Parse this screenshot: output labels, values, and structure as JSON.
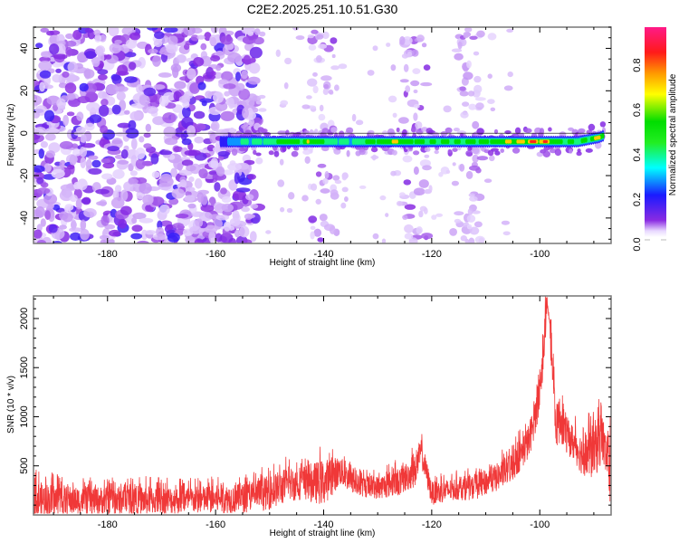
{
  "figure": {
    "title": "C2E2.2025.251.10.51.G30"
  },
  "chart_data": [
    {
      "type": "heatmap",
      "name": "spectrogram",
      "title": "C2E2.2025.251.10.51.G30",
      "xlabel": "Height of straight line (km)",
      "ylabel": "Frequency (Hz)",
      "xlim": [
        -193.7,
        -86.8
      ],
      "ylim": [
        -52,
        50
      ],
      "xticks": [
        -180,
        -160,
        -140,
        -120,
        -100
      ],
      "xtick_labels": [
        "-180",
        "-160",
        "-140",
        "-120",
        "-100"
      ],
      "yticks": [
        -40,
        -20,
        0,
        20,
        40
      ],
      "ytick_labels": [
        "-40",
        "-20",
        "0",
        "20",
        "40"
      ],
      "colorbar": {
        "label": "Normalized spectral amplitude",
        "range": [
          0.0,
          0.97
        ],
        "ticks": [
          0.0,
          0.2,
          0.4,
          0.6,
          0.8
        ],
        "tick_labels": [
          "0.0",
          "0.2",
          "0.4",
          "0.6",
          "0.8"
        ],
        "colormap": "rainbow (white-violet-blue-cyan-green-yellow-red-magenta)"
      },
      "features": {
        "noise_region_x": [
          -193.7,
          -155
        ],
        "signal_line_frequency_hz": -4,
        "signal_line_x": [
          -159,
          -88
        ],
        "signal_peak_amplitude_x": -100,
        "signal_peak_amplitude": 0.85,
        "sparse_noise_columns_x": [
          -140,
          -123,
          -113
        ]
      },
      "signal_profile": {
        "x": [
          -159,
          -155,
          -150,
          -147,
          -144,
          -142,
          -139,
          -135,
          -131,
          -127,
          -124,
          -121,
          -118,
          -115,
          -112,
          -108,
          -104,
          -101,
          -99,
          -96,
          -93,
          -91,
          -89,
          -88
        ],
        "amplitude": [
          0.15,
          0.35,
          0.45,
          0.65,
          0.55,
          0.7,
          0.45,
          0.4,
          0.55,
          0.7,
          0.6,
          0.5,
          0.55,
          0.5,
          0.55,
          0.6,
          0.7,
          0.85,
          0.8,
          0.55,
          0.45,
          0.5,
          0.8,
          0.6
        ],
        "frequency_hz": [
          -4,
          -4,
          -4,
          -4,
          -4,
          -4,
          -4,
          -4,
          -4,
          -4,
          -4,
          -4,
          -4,
          -4,
          -4,
          -4,
          -4,
          -4,
          -4,
          -4,
          -4,
          -3,
          -2,
          -1
        ]
      }
    },
    {
      "type": "line",
      "name": "snr",
      "xlabel": "Height of straight line (km)",
      "ylabel": "SNR (10 * v/v)",
      "xlim": [
        -193.7,
        -86.8
      ],
      "ylim": [
        0,
        2230
      ],
      "xticks": [
        -180,
        -160,
        -140,
        -120,
        -100
      ],
      "xtick_labels": [
        "-180",
        "-160",
        "-140",
        "-120",
        "-100"
      ],
      "yticks": [
        500,
        1000,
        1500,
        2000
      ],
      "ytick_labels": [
        "500",
        "1000",
        "1500",
        "2000"
      ],
      "series": [
        {
          "name": "SNR",
          "color": "#ee2222",
          "envelope_x": [
            -193.7,
            -185,
            -175,
            -165,
            -155,
            -150,
            -147,
            -144,
            -140,
            -137,
            -134,
            -130,
            -126,
            -123,
            -122,
            -120,
            -116,
            -112,
            -108,
            -105,
            -102,
            -100,
            -99,
            -98.5,
            -98,
            -97,
            -96,
            -95,
            -94,
            -92,
            -90,
            -88.5,
            -87.5,
            -86.8
          ],
          "envelope_mean": [
            150,
            145,
            150,
            150,
            170,
            230,
            300,
            330,
            330,
            450,
            300,
            280,
            340,
            450,
            650,
            220,
            260,
            280,
            380,
            500,
            750,
            1200,
            1900,
            2150,
            1800,
            900,
            1000,
            800,
            750,
            600,
            650,
            800,
            550,
            500
          ],
          "envelope_peak": [
            470,
            380,
            400,
            380,
            420,
            520,
            600,
            620,
            720,
            700,
            480,
            480,
            580,
            720,
            890,
            420,
            450,
            490,
            620,
            760,
            1050,
            1500,
            2230,
            2230,
            2100,
            1250,
            1450,
            1100,
            1050,
            950,
            1150,
            1250,
            900,
            1300
          ]
        }
      ]
    }
  ]
}
